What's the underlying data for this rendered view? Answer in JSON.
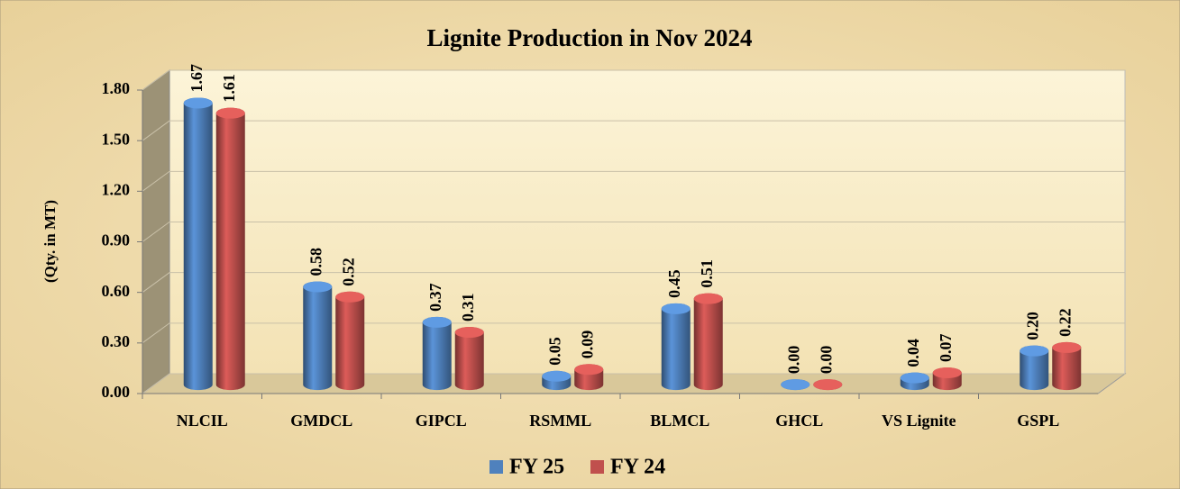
{
  "chart_data": {
    "type": "bar",
    "title": "Lignite Production in Nov 2024",
    "y_label": "(Qty. in MT)",
    "categories": [
      "NLCIL",
      "GMDCL",
      "GIPCL",
      "RSMML",
      "BLMCL",
      "GHCL",
      "VS Lignite",
      "GSPL"
    ],
    "series": [
      {
        "name": "FY 25",
        "color": "#4f81bd",
        "values": [
          1.67,
          0.58,
          0.37,
          0.05,
          0.45,
          0.0,
          0.04,
          0.2
        ],
        "value_labels": [
          "1.67",
          "0.58",
          "0.37",
          "0.05",
          "0.45",
          "0.00",
          "0.04",
          "0.20"
        ]
      },
      {
        "name": "FY 24",
        "color": "#c0504d",
        "values": [
          1.61,
          0.52,
          0.31,
          0.09,
          0.51,
          0.0,
          0.07,
          0.22
        ],
        "value_labels": [
          "1.61",
          "0.52",
          "0.31",
          "0.09",
          "0.51",
          "0.00",
          "0.07",
          "0.22"
        ]
      }
    ],
    "ylim": [
      0,
      1.8
    ],
    "yticks": [
      {
        "value": 0,
        "label": "0.00"
      },
      {
        "value": 0.3,
        "label": "0.30"
      },
      {
        "value": 0.6,
        "label": "0.60"
      },
      {
        "value": 0.9,
        "label": "0.90"
      },
      {
        "value": 1.2,
        "label": "1.20"
      },
      {
        "value": 1.5,
        "label": "1.50"
      },
      {
        "value": 1.8,
        "label": "1.80"
      }
    ],
    "grid": true,
    "legend": "bottom"
  }
}
